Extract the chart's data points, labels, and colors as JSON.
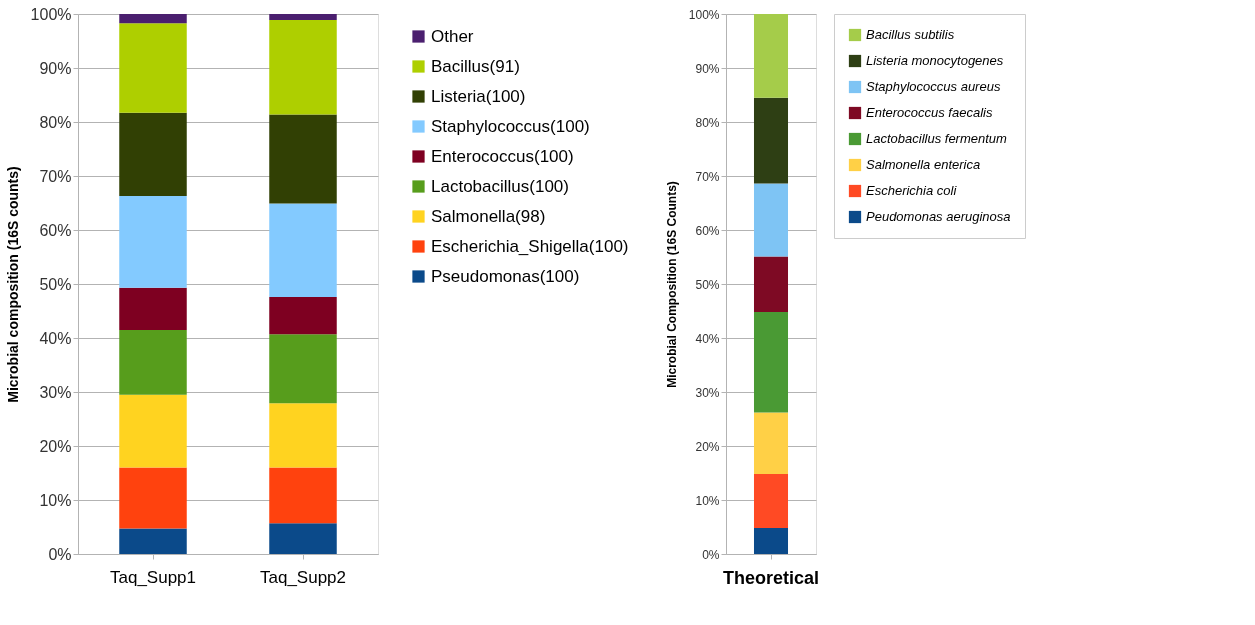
{
  "chart_data": [
    {
      "type": "bar",
      "stacked": true,
      "categories": [
        "Taq_Supp1",
        "Taq_Supp2"
      ],
      "ylabel": "Microbial composition (16S counts)",
      "ylim": [
        0,
        100
      ],
      "yticks": [
        {
          "value": 0,
          "label": "0%"
        },
        {
          "value": 10,
          "label": "10%"
        },
        {
          "value": 20,
          "label": "20%"
        },
        {
          "value": 30,
          "label": "30%"
        },
        {
          "value": 40,
          "label": "40%"
        },
        {
          "value": 50,
          "label": "50%"
        },
        {
          "value": 60,
          "label": "60%"
        },
        {
          "value": 70,
          "label": "70%"
        },
        {
          "value": 80,
          "label": "80%"
        },
        {
          "value": 90,
          "label": "90%"
        },
        {
          "value": 100,
          "label": "100%"
        }
      ],
      "grid": "y",
      "legend": "right",
      "series": [
        {
          "name": "Pseudomonas(100)",
          "color": "#0b4a8a",
          "values": [
            4.7,
            5.7
          ]
        },
        {
          "name": "Escherichia_Shigella(100)",
          "color": "#ff420e",
          "values": [
            11.3,
            10.3
          ]
        },
        {
          "name": "Salmonella(98)",
          "color": "#ffd320",
          "values": [
            13.5,
            11.9
          ]
        },
        {
          "name": "Lactobacillus(100)",
          "color": "#579d1c",
          "values": [
            12.0,
            12.8
          ]
        },
        {
          "name": "Enterococcus(100)",
          "color": "#7e0021",
          "values": [
            7.8,
            6.9
          ]
        },
        {
          "name": "Staphylococcus(100)",
          "color": "#83caff",
          "values": [
            17.0,
            17.3
          ]
        },
        {
          "name": "Listeria(100)",
          "color": "#314004",
          "values": [
            15.4,
            16.5
          ]
        },
        {
          "name": "Bacillus(91)",
          "color": "#aecf00",
          "values": [
            16.6,
            17.5
          ]
        },
        {
          "name": "Other",
          "color": "#4b1f6f",
          "values": [
            1.7,
            1.1
          ]
        }
      ]
    },
    {
      "type": "bar",
      "stacked": true,
      "categories": [
        "Theoretical"
      ],
      "ylabel": "Microbial Composition (16S Counts)",
      "ylim": [
        0,
        100
      ],
      "yticks": [
        {
          "value": 0,
          "label": "0%"
        },
        {
          "value": 10,
          "label": "10%"
        },
        {
          "value": 20,
          "label": "20%"
        },
        {
          "value": 30,
          "label": "30%"
        },
        {
          "value": 40,
          "label": "40%"
        },
        {
          "value": 50,
          "label": "50%"
        },
        {
          "value": 60,
          "label": "60%"
        },
        {
          "value": 70,
          "label": "70%"
        },
        {
          "value": 80,
          "label": "80%"
        },
        {
          "value": 90,
          "label": "90%"
        },
        {
          "value": 100,
          "label": "100%"
        }
      ],
      "grid": "y",
      "legend": "right",
      "series": [
        {
          "name": "Peudomonas aeruginosa",
          "color": "#0b4a8a",
          "values": [
            4.8
          ]
        },
        {
          "name": "Escherichia coli",
          "color": "#ff4a24",
          "values": [
            10.0
          ]
        },
        {
          "name": "Salmonella enterica",
          "color": "#ffd046",
          "values": [
            11.4
          ]
        },
        {
          "name": "Lactobacillus fermentum",
          "color": "#4a9a34",
          "values": [
            18.6
          ]
        },
        {
          "name": "Enterococcus faecalis",
          "color": "#7e0a24",
          "values": [
            10.3
          ]
        },
        {
          "name": "Staphylococcus aureus",
          "color": "#7ec4f4",
          "values": [
            13.5
          ]
        },
        {
          "name": "Listeria monocytogenes",
          "color": "#2e3f14",
          "values": [
            15.9
          ]
        },
        {
          "name": "Bacillus subtilis",
          "color": "#a5cc4a",
          "values": [
            15.5
          ]
        }
      ]
    }
  ]
}
